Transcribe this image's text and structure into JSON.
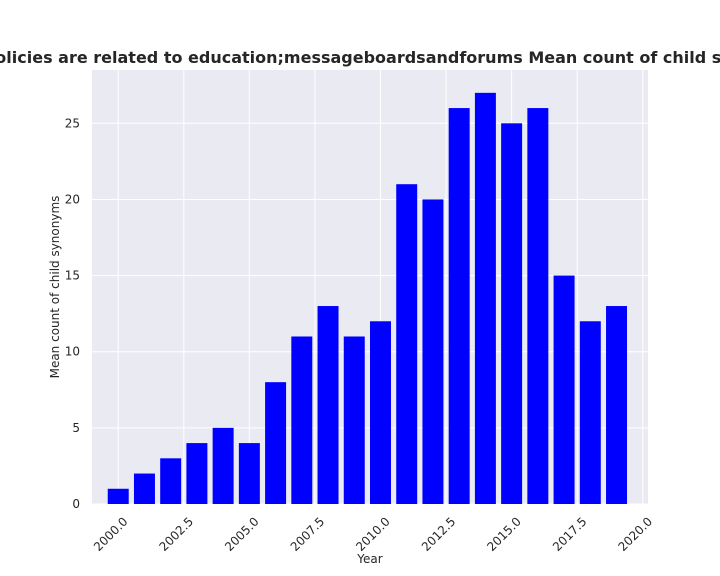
{
  "chart_data": {
    "type": "bar",
    "title": "Sites that have privacy policies are related to education;messageboardsandforums Mean count of child synonyms in privacy policies",
    "xlabel": "Year",
    "ylabel": "Mean count of child synonyms",
    "x": [
      2000,
      2001,
      2002,
      2003,
      2004,
      2005,
      2006,
      2007,
      2008,
      2009,
      2010,
      2011,
      2012,
      2013,
      2014,
      2015,
      2016,
      2017,
      2018,
      2019
    ],
    "values": [
      1,
      2,
      3,
      4,
      5,
      4,
      8,
      11,
      13,
      11,
      12,
      21,
      20,
      26,
      27,
      25,
      26,
      15,
      12,
      13
    ],
    "xlim": [
      1999.0,
      2020.2
    ],
    "ylim": [
      0,
      28.5
    ],
    "xticks": [
      2000.0,
      2002.5,
      2005.0,
      2007.5,
      2010.0,
      2012.5,
      2015.0,
      2017.5,
      2020.0
    ],
    "xtick_labels": [
      "2000.0",
      "2002.5",
      "2005.0",
      "2007.5",
      "2010.0",
      "2012.5",
      "2015.0",
      "2017.5",
      "2020.0"
    ],
    "yticks": [
      0,
      5,
      10,
      15,
      20,
      25
    ],
    "ytick_labels": [
      "0",
      "5",
      "10",
      "15",
      "20",
      "25"
    ],
    "bar_color": "#0000ff",
    "background_color": "#eaeaf2",
    "grid": true
  }
}
